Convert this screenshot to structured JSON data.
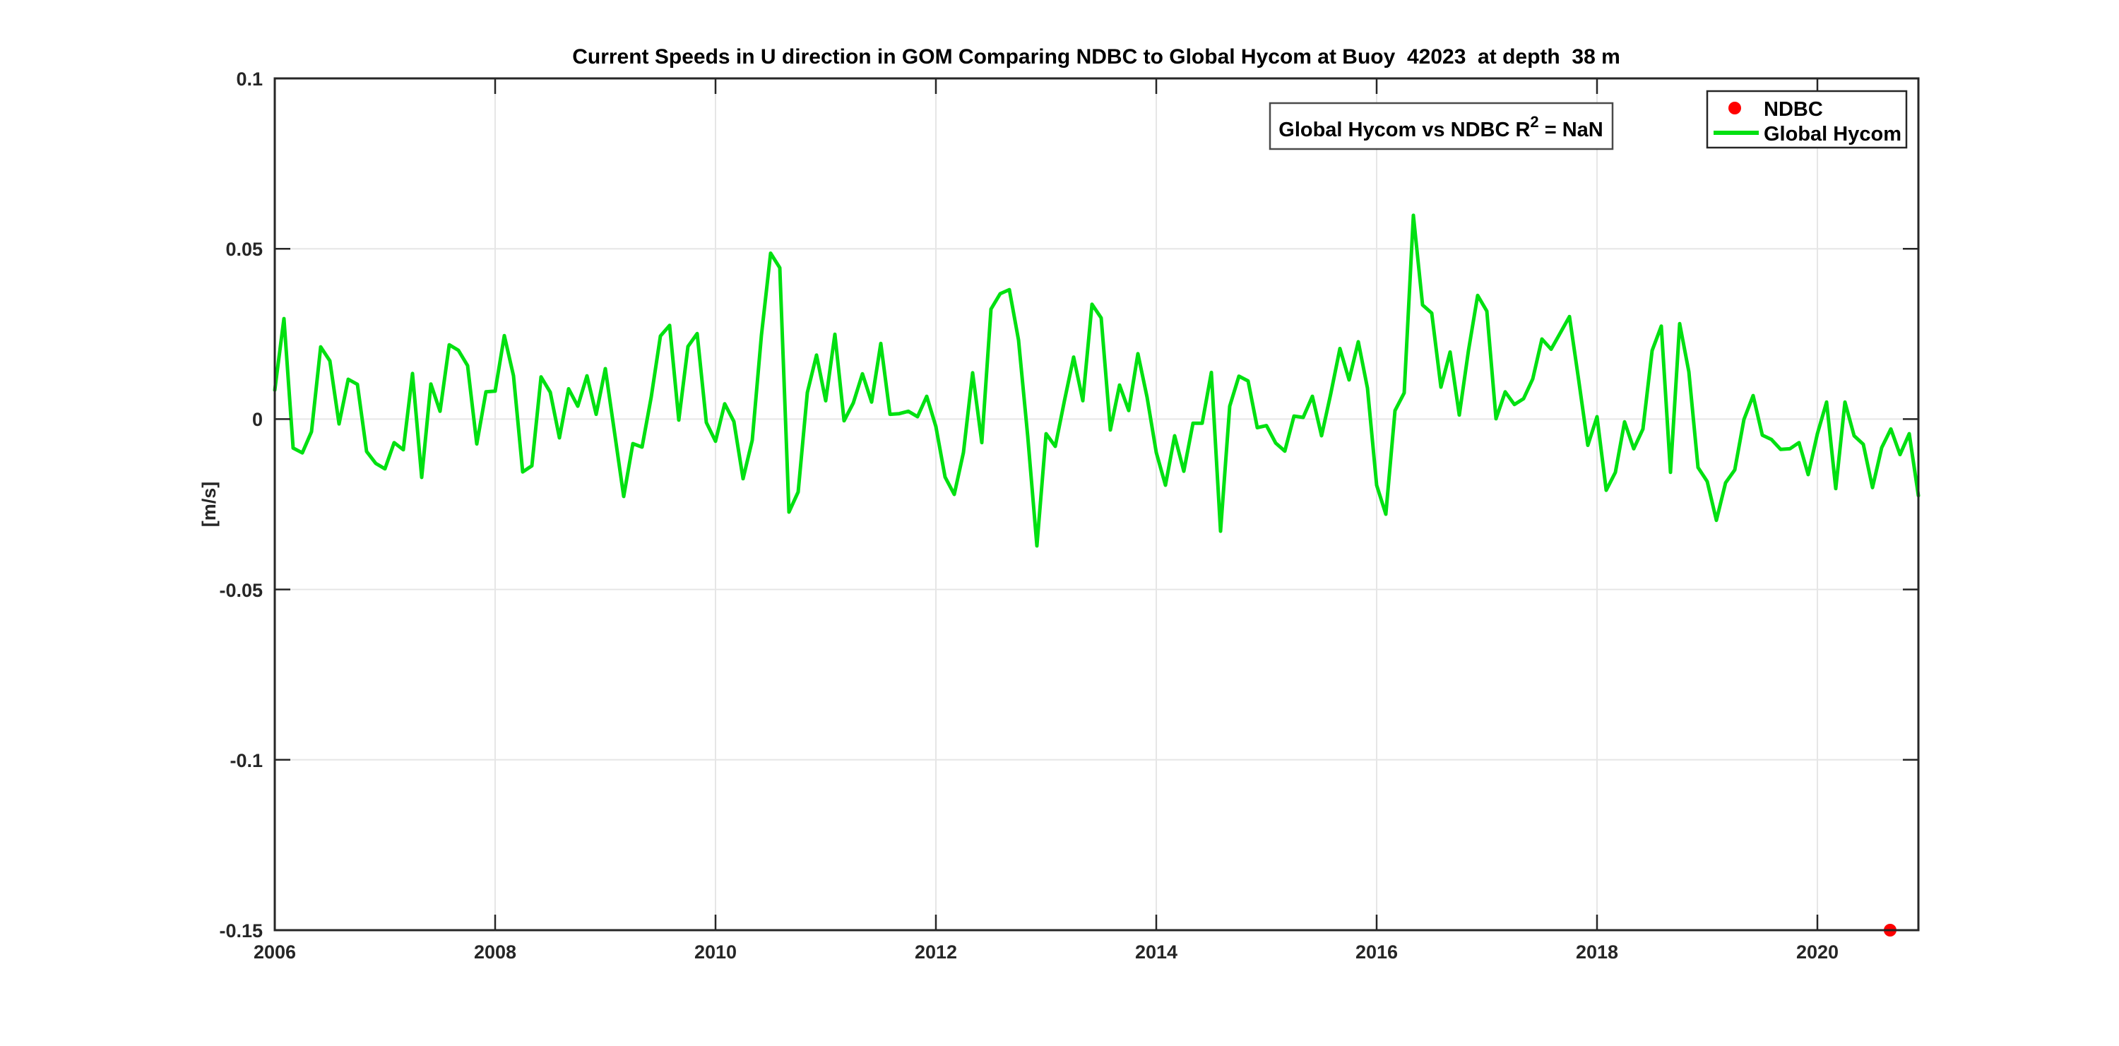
{
  "chart_data": {
    "type": "line",
    "title": "Current Speeds in U direction in GOM Comparing NDBC to Global Hycom at Buoy  42023  at depth  38 m",
    "xlabel": "",
    "ylabel": "[m/s]",
    "xlim": [
      2006,
      2020.9167
    ],
    "ylim": [
      -0.15,
      0.1
    ],
    "grid": true,
    "legend_position": "northeast",
    "x_tick_years": [
      2006,
      2008,
      2010,
      2012,
      2014,
      2016,
      2018,
      2020
    ],
    "x_tick_labels": [
      "2006",
      "2008",
      "2010",
      "2012",
      "2014",
      "2016",
      "2018",
      "2020"
    ],
    "y_tick_values": [
      0.1,
      0.05,
      0,
      -0.05,
      -0.1,
      -0.15
    ],
    "y_tick_labels": [
      "0.1",
      "0.05",
      "0",
      "-0.05",
      "-0.1",
      "-0.15"
    ],
    "colors": {
      "ndbc": "#ff0000",
      "global_hycom": "#00e011",
      "axis": "#262626",
      "grid": "#e6e6e6",
      "annotation_border": "#4a4a4a",
      "legend_border": "#262626"
    },
    "r_squared": "NaN",
    "series": [
      {
        "name": "Global Hycom",
        "type": "line",
        "color_key": "global_hycom",
        "start_year": 2006,
        "interval_months": 1,
        "values": [
          0.0085,
          0.0295,
          -0.0085,
          -0.0099,
          -0.0037,
          0.0212,
          0.0171,
          -0.0014,
          0.0117,
          0.0102,
          -0.0095,
          -0.013,
          -0.0146,
          -0.0069,
          -0.009,
          0.0134,
          -0.0171,
          0.0103,
          0.0023,
          0.0218,
          0.0202,
          0.0157,
          -0.0073,
          0.008,
          0.0082,
          0.0245,
          0.0127,
          -0.0155,
          -0.0137,
          0.0124,
          0.0079,
          -0.0055,
          0.0089,
          0.0038,
          0.0127,
          0.0014,
          0.0148,
          -0.0039,
          -0.0227,
          -0.0072,
          -0.0082,
          0.0065,
          0.0244,
          0.0275,
          -0.0003,
          0.0213,
          0.0251,
          -0.001,
          -0.0065,
          0.0045,
          -0.0007,
          -0.0175,
          -0.0062,
          0.0246,
          0.0487,
          0.0444,
          -0.0273,
          -0.0214,
          0.0078,
          0.0188,
          0.0054,
          0.0249,
          -0.0005,
          0.0047,
          0.0133,
          0.005,
          0.0222,
          0.0014,
          0.0016,
          0.0023,
          0.0007,
          0.0067,
          -0.0022,
          -0.017,
          -0.0221,
          -0.0098,
          0.0136,
          -0.0069,
          0.0323,
          0.0368,
          0.038,
          0.0232,
          -0.005,
          -0.0372,
          -0.0043,
          -0.008,
          0.0054,
          0.0182,
          0.0054,
          0.0337,
          0.0297,
          -0.0032,
          0.01,
          0.0025,
          0.0192,
          0.0064,
          -0.0098,
          -0.0194,
          -0.0049,
          -0.0153,
          -0.0012,
          -0.0012,
          0.0137,
          -0.0329,
          0.0038,
          0.0126,
          0.0112,
          -0.0025,
          -0.0019,
          -0.007,
          -0.0094,
          0.0009,
          0.0005,
          0.0067,
          -0.0049,
          0.0074,
          0.0207,
          0.0115,
          0.0227,
          0.0091,
          -0.0194,
          -0.0279,
          0.0025,
          0.0077,
          0.0598,
          0.0335,
          0.0311,
          0.0094,
          0.0197,
          0.0012,
          0.0201,
          0.0363,
          0.0317,
          0.0001,
          0.008,
          0.0043,
          0.006,
          0.0118,
          0.0235,
          0.0205,
          0.0253,
          0.0301,
          0.0115,
          -0.0077,
          0.0007,
          -0.0209,
          -0.0156,
          -0.0008,
          -0.0087,
          -0.0029,
          0.0201,
          0.0273,
          -0.0156,
          0.028,
          0.0139,
          -0.0142,
          -0.0183,
          -0.0297,
          -0.0187,
          -0.0149,
          -0.0001,
          0.0069,
          -0.0047,
          -0.006,
          -0.0089,
          -0.0087,
          -0.0069,
          -0.0163,
          -0.0043,
          0.005,
          -0.0204,
          0.005,
          -0.0049,
          -0.0074,
          -0.0201,
          -0.0084,
          -0.0029,
          -0.0104,
          -0.0043,
          -0.0225
        ]
      },
      {
        "name": "NDBC",
        "type": "scatter",
        "color_key": "ndbc",
        "points": [
          [
            2020.66,
            -0.15
          ]
        ]
      }
    ]
  },
  "legend": {
    "items": [
      {
        "label": "NDBC",
        "marker": "red-dot"
      },
      {
        "label": "Global Hycom",
        "marker": "green-line"
      }
    ]
  },
  "annotation": {
    "prefix": "Global Hycom vs NDBC R",
    "sup": "2",
    "suffix": " = NaN"
  }
}
